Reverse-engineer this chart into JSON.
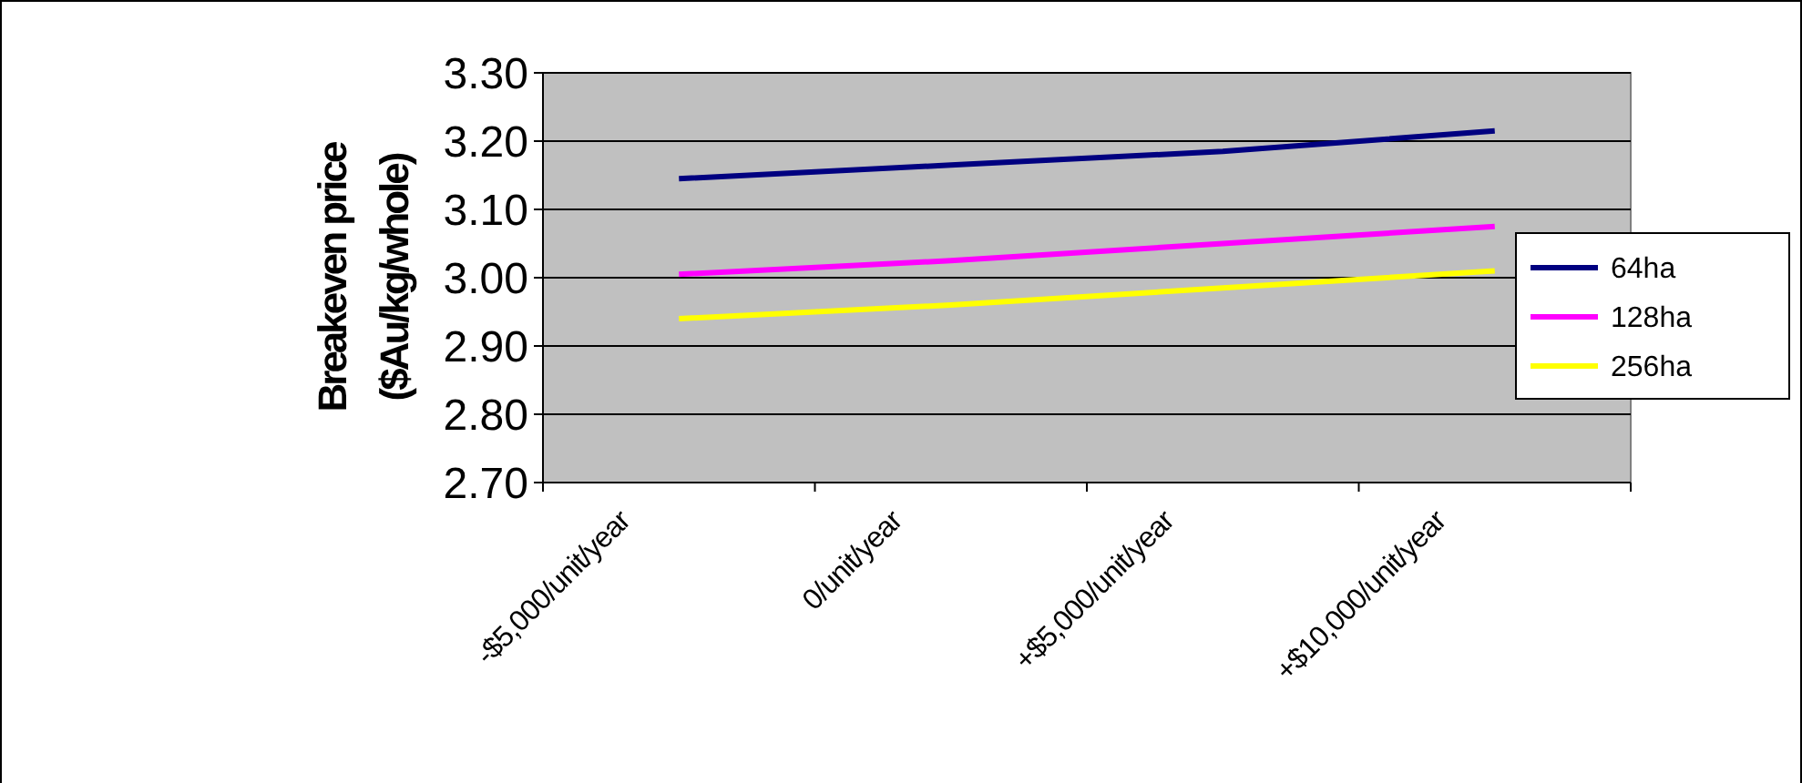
{
  "chart_data": {
    "type": "line",
    "ylabel": "Breakeven price\n($Au/kg/whole)",
    "categories": [
      "-$5,000/unit/year",
      "0/unit/year",
      "+$5,000/unit/year",
      "+$10,000/unit/year"
    ],
    "series": [
      {
        "name": "64ha",
        "color": "#000080",
        "values": [
          3.145,
          3.165,
          3.185,
          3.215
        ]
      },
      {
        "name": "128ha",
        "color": "#ff00ff",
        "values": [
          3.005,
          3.025,
          3.05,
          3.075
        ]
      },
      {
        "name": "256ha",
        "color": "#ffff00",
        "values": [
          2.94,
          2.96,
          2.985,
          3.01
        ]
      }
    ],
    "ylim": [
      2.7,
      3.3
    ],
    "yticks": [
      {
        "value": 2.7,
        "label": "2.70"
      },
      {
        "value": 2.8,
        "label": "2.80"
      },
      {
        "value": 2.9,
        "label": "2.90"
      },
      {
        "value": 3.0,
        "label": "3.00"
      },
      {
        "value": 3.1,
        "label": "3.10"
      },
      {
        "value": 3.2,
        "label": "3.20"
      },
      {
        "value": 3.3,
        "label": "3.30"
      }
    ],
    "grid": "y",
    "legend": "right",
    "marker": "none",
    "line_style": "solid"
  }
}
